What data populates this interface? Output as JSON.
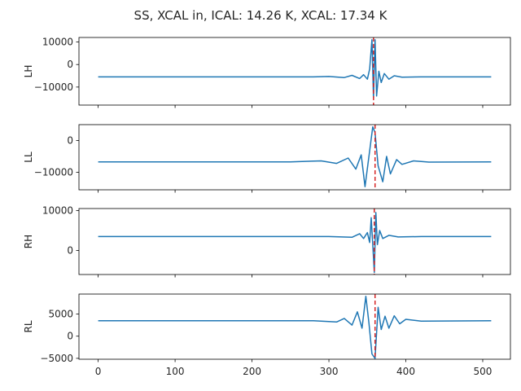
{
  "title": "SS, XCAL in, ICAL: 14.26 K, XCAL: 17.34 K",
  "colors": {
    "line": "#1f77b4",
    "marker": "#d62728",
    "axes": "#000000"
  },
  "chart_data": [
    {
      "type": "line",
      "ylabel": "LH",
      "xlim": [
        -25,
        536
      ],
      "ylim": [
        -18000,
        12000
      ],
      "xticks": [
        0,
        100,
        200,
        300,
        400,
        500
      ],
      "yticks": [
        10000,
        0,
        -10000
      ],
      "ytick_labels": [
        "10000",
        "0",
        "−10000"
      ],
      "show_xtick_labels": false,
      "baseline": -5500,
      "marker_x": 358,
      "series": [
        {
          "x": [
            0,
            280,
            300,
            320,
            330,
            340,
            345,
            350,
            353,
            356,
            358,
            360,
            362,
            365,
            368,
            372,
            378,
            385,
            395,
            420,
            511
          ],
          "y": [
            -5500,
            -5500,
            -5300,
            -5800,
            -4800,
            -6200,
            -4500,
            -6500,
            -2000,
            11000,
            -15000,
            11000,
            -14000,
            -3000,
            -8000,
            -4000,
            -6500,
            -5000,
            -5600,
            -5500,
            -5500
          ]
        }
      ]
    },
    {
      "type": "line",
      "ylabel": "LL",
      "xlim": [
        -25,
        536
      ],
      "ylim": [
        -15500,
        5000
      ],
      "xticks": [
        0,
        100,
        200,
        300,
        400,
        500
      ],
      "yticks": [
        0,
        -10000
      ],
      "ytick_labels": [
        "0",
        "−10000"
      ],
      "show_xtick_labels": false,
      "baseline": -6700,
      "marker_x": 360,
      "series": [
        {
          "x": [
            0,
            250,
            290,
            310,
            325,
            335,
            342,
            347,
            352,
            357,
            360,
            364,
            370,
            375,
            380,
            388,
            395,
            410,
            430,
            511
          ],
          "y": [
            -6700,
            -6700,
            -6400,
            -7200,
            -5500,
            -9000,
            -4500,
            -14500,
            -5000,
            4300,
            2500,
            -8000,
            -13000,
            -5000,
            -10500,
            -6000,
            -7500,
            -6400,
            -6800,
            -6700
          ]
        }
      ]
    },
    {
      "type": "line",
      "ylabel": "RH",
      "xlim": [
        -25,
        536
      ],
      "ylim": [
        -6000,
        10500
      ],
      "xticks": [
        0,
        100,
        200,
        300,
        400,
        500
      ],
      "yticks": [
        10000,
        0
      ],
      "ytick_labels": [
        "10000",
        "0"
      ],
      "show_xtick_labels": false,
      "baseline": 3500,
      "marker_x": 359,
      "series": [
        {
          "x": [
            0,
            300,
            330,
            340,
            345,
            350,
            353,
            355,
            357,
            359,
            361,
            363,
            366,
            370,
            378,
            390,
            420,
            511
          ],
          "y": [
            3500,
            3500,
            3300,
            4200,
            3000,
            4500,
            2000,
            8200,
            1500,
            -5500,
            9500,
            1500,
            5000,
            3000,
            3800,
            3400,
            3500,
            3500
          ]
        }
      ]
    },
    {
      "type": "line",
      "ylabel": "RL",
      "xlim": [
        -25,
        536
      ],
      "ylim": [
        -5200,
        9500
      ],
      "xticks": [
        0,
        100,
        200,
        300,
        400,
        500
      ],
      "xtick_labels": [
        "0",
        "100",
        "200",
        "300",
        "400",
        "500"
      ],
      "yticks": [
        5000,
        0,
        -5000
      ],
      "ytick_labels": [
        "5000",
        "0",
        "−5000"
      ],
      "show_xtick_labels": true,
      "baseline": 3500,
      "marker_x": 360,
      "series": [
        {
          "x": [
            0,
            280,
            310,
            320,
            330,
            337,
            343,
            348,
            352,
            356,
            360,
            364,
            368,
            373,
            378,
            385,
            392,
            400,
            420,
            511
          ],
          "y": [
            3500,
            3500,
            3200,
            4000,
            2500,
            5500,
            1800,
            9000,
            3000,
            -4000,
            -5000,
            6500,
            1500,
            4500,
            1800,
            4600,
            2800,
            3800,
            3400,
            3500
          ]
        }
      ]
    }
  ]
}
